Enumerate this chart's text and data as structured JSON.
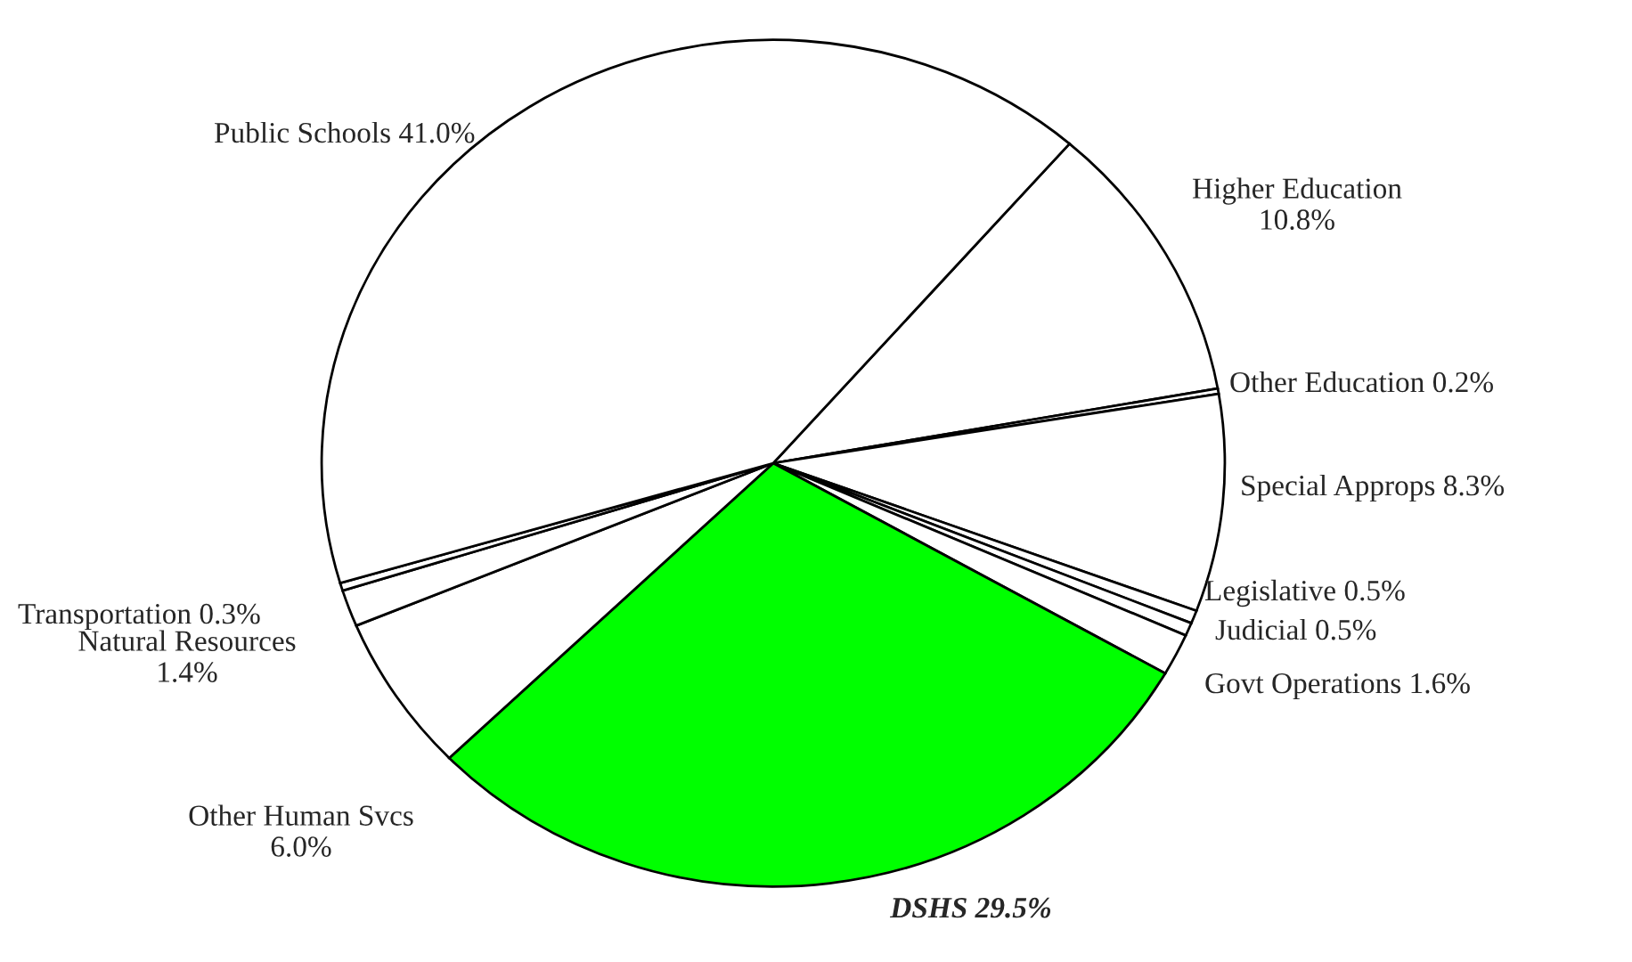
{
  "chart_data": {
    "type": "pie",
    "categories": [
      "Higher Education",
      "Other Education",
      "Special Approps",
      "Legislative",
      "Judicial",
      "Govt Operations",
      "DSHS",
      "Other Human Svcs",
      "Natural Resources",
      "Transportation",
      "Public Schools"
    ],
    "values": [
      10.8,
      0.2,
      8.3,
      0.5,
      0.5,
      1.6,
      29.5,
      6.0,
      1.4,
      0.3,
      41.0
    ],
    "value_labels": [
      "10.8%",
      "0.2%",
      "8.3%",
      "0.5%",
      "0.5%",
      "1.6%",
      "29.5%",
      "6.0%",
      "1.4%",
      "0.3%",
      "41.0%"
    ],
    "colors": [
      "#ffffff",
      "#ffffff",
      "#ffffff",
      "#ffffff",
      "#ffffff",
      "#ffffff",
      "#00ff00",
      "#ffffff",
      "#ffffff",
      "#ffffff",
      "#ffffff"
    ]
  }
}
